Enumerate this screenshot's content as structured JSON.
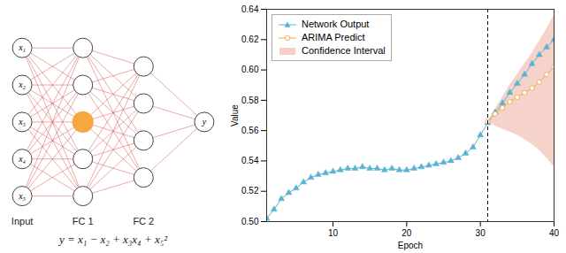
{
  "chart_data": [
    {
      "type": "network",
      "color": "#d44040",
      "annotations": [
        "y = x₁ − x₂ + x₃x₄ + x₅²"
      ],
      "layers": [
        {
          "name": "Input",
          "node_labels": [
            "x₁",
            "x₂",
            "x₃",
            "x₄",
            "x₅"
          ]
        },
        {
          "name": "FC 1",
          "node_colors": [
            null,
            null,
            "#f5a742",
            null,
            null
          ]
        },
        {
          "name": "FC 2",
          "node_colors": [
            null,
            null,
            null,
            null
          ]
        },
        {
          "name": null,
          "node_labels": [
            "y"
          ]
        }
      ]
    },
    {
      "type": "line",
      "xlabel": "Epoch",
      "ylabel": "Value",
      "xlim": [
        1,
        40
      ],
      "ylim": [
        0.5,
        0.64
      ],
      "xticks": [
        10,
        20,
        30,
        40
      ],
      "yticks": [
        {
          "value": 0.5,
          "label": "0.50"
        },
        0.52,
        0.54,
        0.56,
        0.58,
        {
          "value": 0.6,
          "label": "0.60"
        },
        0.62,
        0.64
      ],
      "grid": false,
      "legend": "upper left",
      "series": [
        {
          "name": "Network Output",
          "type": "line",
          "color": "#5ab4d0",
          "marker": "triangle",
          "x": [
            1,
            2,
            3,
            4,
            5,
            6,
            7,
            8,
            9,
            10,
            11,
            12,
            13,
            14,
            15,
            16,
            17,
            18,
            19,
            20,
            21,
            22,
            23,
            24,
            25,
            26,
            27,
            28,
            29,
            30,
            31,
            32,
            33,
            34,
            35,
            36,
            37,
            38,
            39,
            40
          ],
          "values": [
            0.502,
            0.508,
            0.515,
            0.519,
            0.522,
            0.526,
            0.529,
            0.531,
            0.532,
            0.533,
            0.534,
            0.535,
            0.535,
            0.536,
            0.535,
            0.535,
            0.534,
            0.535,
            0.534,
            0.534,
            0.535,
            0.536,
            0.537,
            0.538,
            0.539,
            0.54,
            0.542,
            0.545,
            0.549,
            0.557,
            0.565,
            0.572,
            0.578,
            0.585,
            0.591,
            0.597,
            0.604,
            0.61,
            0.615,
            0.62
          ]
        },
        {
          "name": "ARIMA Predict",
          "type": "line",
          "color": "#f5a742",
          "marker": "circle_open",
          "x": [
            31,
            32,
            33,
            34,
            35,
            36,
            37,
            38,
            39,
            40
          ],
          "values": [
            0.566,
            0.571,
            0.575,
            0.579,
            0.582,
            0.585,
            0.588,
            0.592,
            0.597,
            0.602
          ]
        },
        {
          "name": "Confidence Interval",
          "type": "area",
          "color": "#f2c4b8",
          "x": [
            31,
            32,
            33,
            34,
            35,
            36,
            37,
            38,
            39,
            40
          ],
          "upper": [
            0.566,
            0.574,
            0.582,
            0.59,
            0.597,
            0.604,
            0.611,
            0.619,
            0.627,
            0.636
          ],
          "lower": [
            0.566,
            0.563,
            0.561,
            0.559,
            0.557,
            0.554,
            0.551,
            0.547,
            0.542,
            0.536
          ]
        }
      ],
      "vline": {
        "x": 31,
        "line_style": "dashed",
        "color": "#000000"
      }
    }
  ]
}
